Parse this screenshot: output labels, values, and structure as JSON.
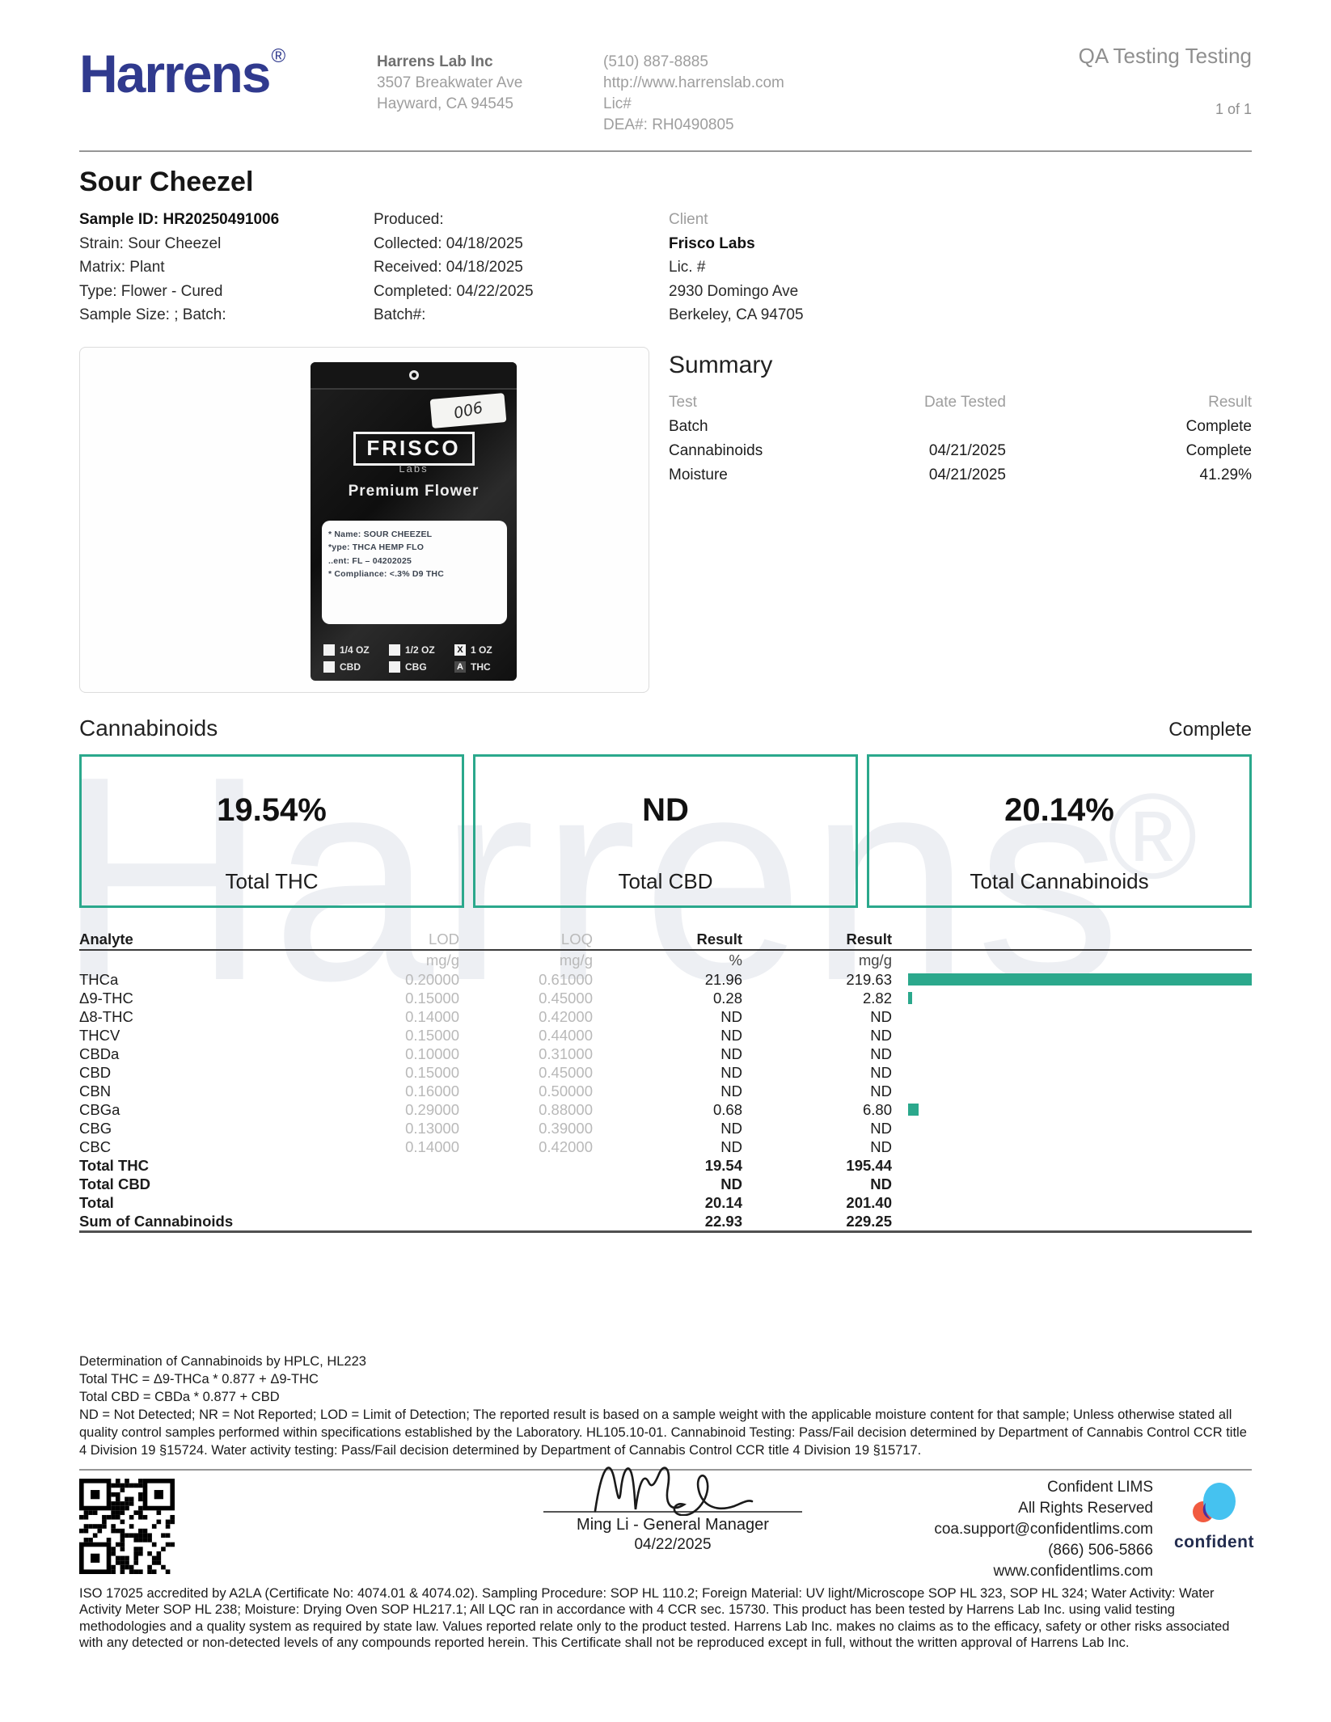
{
  "header": {
    "logo_text": "Harrens",
    "registered": "®",
    "lab_name": "Harrens Lab Inc",
    "address1": "3507 Breakwater Ave",
    "address2": "Hayward, CA 94545",
    "phone": "(510) 887-8885",
    "website": "http://www.harrenslab.com",
    "lic": "Lic#",
    "dea": "DEA#: RH0490805",
    "report_type": "QA Testing Testing",
    "page_indicator": "1 of 1"
  },
  "sample": {
    "title": "Sour Cheezel",
    "left": [
      "Sample ID: HR20250491006",
      "Strain: Sour Cheezel",
      "Matrix: Plant",
      "Type: Flower - Cured",
      "Sample Size: ; Batch:"
    ],
    "middle": [
      "Produced:",
      "Collected: 04/18/2025",
      "Received: 04/18/2025",
      "Completed: 04/22/2025",
      "Batch#:"
    ],
    "client": {
      "label": "Client",
      "name": "Frisco Labs",
      "lines": [
        "Lic. #",
        "2930 Domingo Ave",
        "Berkeley, CA 94705"
      ]
    }
  },
  "package": {
    "sticker": "006",
    "brand": "FRISCO",
    "brand_sub": "Labs",
    "product_line": "Premium Flower",
    "label_lines": [
      "* Name: SOUR CHEEZEL",
      "*ype: THCA HEMP FLO",
      "..ent: FL – 04202025",
      "* Compliance: <.3% D9 THC"
    ],
    "sizes": [
      {
        "label": "1/4 OZ",
        "mark": ""
      },
      {
        "label": "1/2 OZ",
        "mark": ""
      },
      {
        "label": "1 OZ",
        "mark": "X"
      }
    ],
    "types": [
      {
        "label": "CBD",
        "mark": ""
      },
      {
        "label": "CBG",
        "mark": ""
      },
      {
        "label": "THC",
        "mark": "A"
      }
    ]
  },
  "summary": {
    "title": "Summary",
    "columns": [
      "Test",
      "Date Tested",
      "Result"
    ],
    "rows": [
      {
        "test": "Batch",
        "date": "",
        "result": "Complete"
      },
      {
        "test": "Cannabinoids",
        "date": "04/21/2025",
        "result": "Complete"
      },
      {
        "test": "Moisture",
        "date": "04/21/2025",
        "result": "41.29%"
      }
    ]
  },
  "cannabinoids": {
    "section_title": "Cannabinoids",
    "status": "Complete",
    "totals": [
      {
        "value": "19.54%",
        "label": "Total THC"
      },
      {
        "value": "ND",
        "label": "Total CBD"
      },
      {
        "value": "20.14%",
        "label": "Total Cannabinoids"
      }
    ]
  },
  "analyte_table": {
    "columns": {
      "analyte": "Analyte",
      "lod": "LOD",
      "loq": "LOQ",
      "result1": "Result",
      "result2": "Result"
    },
    "units": {
      "lod": "mg/g",
      "loq": "mg/g",
      "pct": "%",
      "mgg": "mg/g"
    },
    "bar_max": 219.63,
    "rows": [
      {
        "analyte": "THCa",
        "lod": "0.20000",
        "loq": "0.61000",
        "pct": "21.96",
        "mgg": "219.63",
        "bar": 219.63
      },
      {
        "analyte": "Δ9-THC",
        "lod": "0.15000",
        "loq": "0.45000",
        "pct": "0.28",
        "mgg": "2.82",
        "bar": 2.82
      },
      {
        "analyte": "Δ8-THC",
        "lod": "0.14000",
        "loq": "0.42000",
        "pct": "ND",
        "mgg": "ND",
        "bar": 0
      },
      {
        "analyte": "THCV",
        "lod": "0.15000",
        "loq": "0.44000",
        "pct": "ND",
        "mgg": "ND",
        "bar": 0
      },
      {
        "analyte": "CBDa",
        "lod": "0.10000",
        "loq": "0.31000",
        "pct": "ND",
        "mgg": "ND",
        "bar": 0
      },
      {
        "analyte": "CBD",
        "lod": "0.15000",
        "loq": "0.45000",
        "pct": "ND",
        "mgg": "ND",
        "bar": 0
      },
      {
        "analyte": "CBN",
        "lod": "0.16000",
        "loq": "0.50000",
        "pct": "ND",
        "mgg": "ND",
        "bar": 0
      },
      {
        "analyte": "CBGa",
        "lod": "0.29000",
        "loq": "0.88000",
        "pct": "0.68",
        "mgg": "6.80",
        "bar": 6.8
      },
      {
        "analyte": "CBG",
        "lod": "0.13000",
        "loq": "0.39000",
        "pct": "ND",
        "mgg": "ND",
        "bar": 0
      },
      {
        "analyte": "CBC",
        "lod": "0.14000",
        "loq": "0.42000",
        "pct": "ND",
        "mgg": "ND",
        "bar": 0
      }
    ],
    "totals": [
      {
        "analyte": "Total THC",
        "pct": "19.54",
        "mgg": "195.44"
      },
      {
        "analyte": "Total CBD",
        "pct": "ND",
        "mgg": "ND"
      },
      {
        "analyte": "Total",
        "pct": "20.14",
        "mgg": "201.40"
      },
      {
        "analyte": "Sum of Cannabinoids",
        "pct": "22.93",
        "mgg": "229.25"
      }
    ]
  },
  "notes": {
    "method": "Determination of Cannabinoids by HPLC, HL223",
    "formula_thc": "Total THC = Δ9-THCa * 0.877 + Δ9-THC",
    "formula_cbd": "Total CBD = CBDa * 0.877 + CBD",
    "disclaimer": "ND = Not Detected; NR = Not Reported; LOD = Limit of Detection; The reported result is based on a sample weight with the applicable moisture content for that sample; Unless otherwise stated all quality control samples performed within specifications established by the Laboratory. HL105.10-01. Cannabinoid Testing: Pass/Fail decision determined by Department of Cannabis Control CCR title 4 Division 19 §15724. Water activity testing: Pass/Fail decision determined by Department of Cannabis Control CCR title 4 Division 19 §15717."
  },
  "signature": {
    "name_title": "Ming Li - General Manager",
    "date": "04/22/2025"
  },
  "lims": {
    "name": "Confident LIMS",
    "rights": "All Rights Reserved",
    "email": "coa.support@confidentlims.com",
    "phone": "(866) 506-5866",
    "website": "www.confidentlims.com",
    "logo_word": "confident"
  },
  "footer": {
    "accreditation": "ISO 17025 accredited by A2LA (Certificate No: 4074.01 & 4074.02). Sampling Procedure: SOP HL 110.2; Foreign Material: UV light/Microscope SOP HL 323, SOP HL 324; Water Activity: Water Activity Meter SOP HL 238; Moisture: Drying Oven SOP HL217.1; All LQC ran in accordance with 4 CCR sec. 15730. This product has been tested by Harrens Lab Inc. using valid testing methodologies and a quality system as required by state law. Values reported relate only to the product tested. Harrens Lab Inc. makes no claims as to the efficacy, safety or other risks associated with any detected or non-detected levels of any compounds reported herein. This Certificate shall not be reproduced except in full, without the written approval of Harrens Lab Inc."
  },
  "watermark": {
    "text": "Harrens",
    "mark": "®"
  },
  "colors": {
    "accent_teal": "#2ba88c",
    "brand_navy": "#303a8e",
    "watermark_gray": "#edeff3"
  }
}
